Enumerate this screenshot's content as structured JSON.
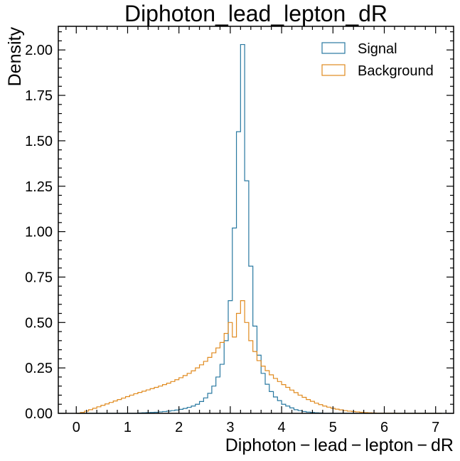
{
  "chart_data": {
    "type": "histogram",
    "title": "Diphoton_lead_lepton_dR",
    "xlabel": "Diphoton − lead − lepton − dR",
    "ylabel": "Density",
    "xlim": [
      -0.35,
      7.35
    ],
    "ylim": [
      0,
      2.13
    ],
    "x_ticks": [
      "0",
      "1",
      "2",
      "3",
      "4",
      "5",
      "6",
      "7"
    ],
    "y_ticks": [
      "0.00",
      "0.25",
      "0.50",
      "0.75",
      "1.00",
      "1.25",
      "1.50",
      "1.75",
      "2.00"
    ],
    "legend_position": "top-right",
    "bin_start": 0,
    "bin_width": 0.08,
    "series": [
      {
        "name": "Signal",
        "color": "#2878a0",
        "values": [
          0,
          0,
          0,
          0,
          0,
          0,
          0,
          0,
          0,
          0,
          0,
          0,
          0,
          0,
          0,
          0.002,
          0.003,
          0.004,
          0.005,
          0.006,
          0.008,
          0.01,
          0.012,
          0.015,
          0.018,
          0.022,
          0.027,
          0.033,
          0.04,
          0.05,
          0.065,
          0.085,
          0.11,
          0.15,
          0.2,
          0.27,
          0.4,
          0.62,
          1.02,
          1.55,
          2.03,
          1.28,
          0.81,
          0.48,
          0.32,
          0.22,
          0.16,
          0.12,
          0.09,
          0.07,
          0.05,
          0.04,
          0.03,
          0.02,
          0.015,
          0.01,
          0.007,
          0.005,
          0.003,
          0.002,
          0,
          0,
          0,
          0,
          0,
          0,
          0,
          0,
          0,
          0,
          0,
          0,
          0,
          0,
          0,
          0,
          0,
          0,
          0,
          0,
          0,
          0,
          0,
          0,
          0,
          0,
          0,
          0,
          0
        ]
      },
      {
        "name": "Background",
        "color": "#e08a1e",
        "values": [
          0,
          0.005,
          0.012,
          0.02,
          0.028,
          0.036,
          0.044,
          0.052,
          0.06,
          0.068,
          0.076,
          0.084,
          0.092,
          0.1,
          0.108,
          0.115,
          0.122,
          0.129,
          0.136,
          0.143,
          0.15,
          0.158,
          0.166,
          0.175,
          0.185,
          0.196,
          0.208,
          0.22,
          0.234,
          0.25,
          0.267,
          0.286,
          0.308,
          0.333,
          0.36,
          0.39,
          0.44,
          0.5,
          0.42,
          0.55,
          0.62,
          0.5,
          0.4,
          0.34,
          0.29,
          0.26,
          0.235,
          0.212,
          0.192,
          0.175,
          0.158,
          0.143,
          0.128,
          0.114,
          0.1,
          0.088,
          0.076,
          0.066,
          0.056,
          0.048,
          0.04,
          0.034,
          0.028,
          0.023,
          0.019,
          0.015,
          0.012,
          0.01,
          0.008,
          0.006,
          0.004,
          0.003,
          0.002,
          0.001,
          0.001,
          0.001,
          0.001,
          0.001,
          0,
          0,
          0,
          0,
          0,
          0,
          0,
          0,
          0,
          0,
          0
        ]
      }
    ]
  }
}
